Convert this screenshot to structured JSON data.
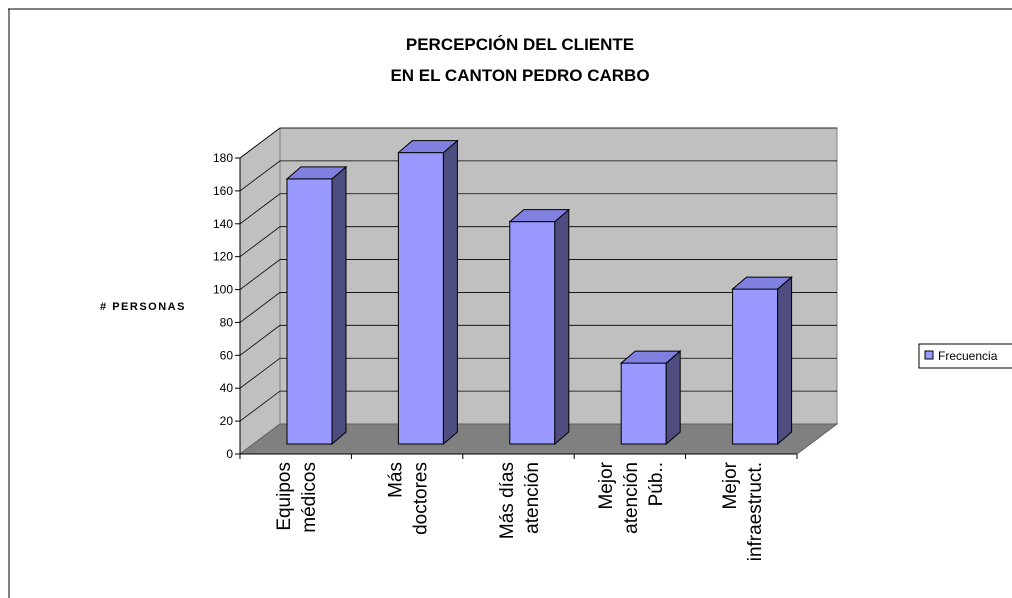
{
  "chart_data": {
    "type": "bar",
    "title_lines": [
      "PERCEPCIÓN DEL CLIENTE",
      "EN EL CANTON PEDRO CARBO"
    ],
    "ylabel": "# PERSONAS",
    "xlabel": "",
    "categories": [
      [
        "Equipos",
        "médicos"
      ],
      [
        "Más",
        "doctores"
      ],
      [
        "Más días",
        "atención"
      ],
      [
        "Mejor",
        "atención",
        "Púb.."
      ],
      [
        "Mejor",
        "infraestruct."
      ]
    ],
    "series": [
      {
        "name": "Frecuencia",
        "values": [
          160,
          176,
          134,
          48,
          93
        ]
      }
    ],
    "ylim": [
      0,
      180
    ],
    "yticks": [
      0,
      20,
      40,
      60,
      80,
      100,
      120,
      140,
      160,
      180
    ],
    "grid": true,
    "legend": "right",
    "style": "3d",
    "colors": {
      "bar_front": "#9999ff",
      "bar_side": "#4d4d80",
      "bar_top": "#8080e0",
      "wall": "#c0c0c0",
      "floor": "#808080"
    }
  }
}
